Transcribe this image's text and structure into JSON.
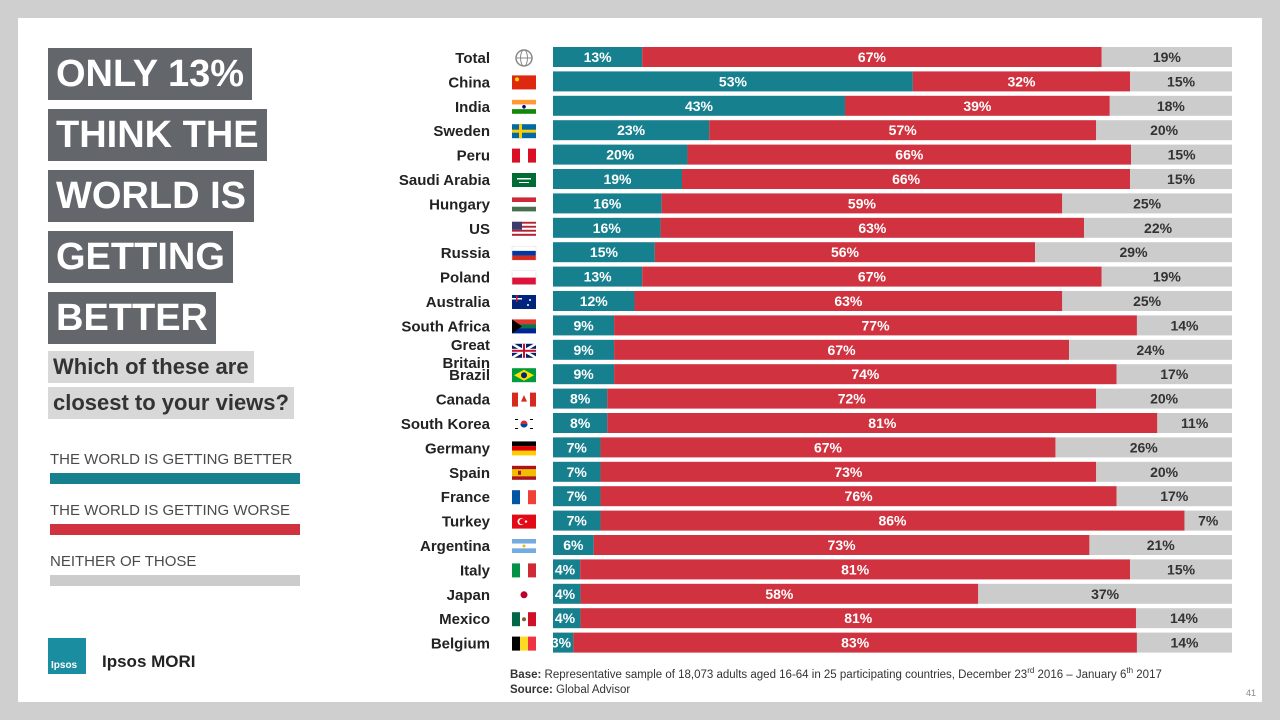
{
  "headline": [
    "ONLY 13%",
    "THINK THE",
    "WORLD IS",
    "GETTING",
    "BETTER"
  ],
  "question": [
    "Which of these are",
    "closest to your views?"
  ],
  "legend": [
    {
      "label": "THE WORLD IS GETTING BETTER",
      "color": "#17808f"
    },
    {
      "label": "THE WORLD IS GETTING WORSE",
      "color": "#d0323f"
    },
    {
      "label": "NEITHER OF THOSE",
      "color": "#cccccc"
    }
  ],
  "logo": {
    "badge": "Ipsos",
    "name": "Ipsos MORI"
  },
  "footer": {
    "base_label": "Base:",
    "base_text": "Representative sample of 18,073 adults aged 16-64 in 25 participating countries, December 23",
    "base_sup1": "rd",
    "base_mid": " 2016 – January 6",
    "base_sup2": "th",
    "base_end": " 2017",
    "source_label": "Source:",
    "source_text": "Global Advisor"
  },
  "page_number": "41",
  "chart_data": {
    "type": "bar",
    "orientation": "horizontal",
    "stacked": true,
    "categories": [
      "Total",
      "China",
      "India",
      "Sweden",
      "Peru",
      "Saudi Arabia",
      "Hungary",
      "US",
      "Russia",
      "Poland",
      "Australia",
      "South Africa",
      "Great Britain",
      "Brazil",
      "Canada",
      "South Korea",
      "Germany",
      "Spain",
      "France",
      "Turkey",
      "Argentina",
      "Italy",
      "Japan",
      "Mexico",
      "Belgium"
    ],
    "series": [
      {
        "name": "THE WORLD IS GETTING BETTER",
        "color": "#17808f",
        "label_color": "#ffffff",
        "values": [
          13,
          53,
          43,
          23,
          20,
          19,
          16,
          16,
          15,
          13,
          12,
          9,
          9,
          9,
          8,
          8,
          7,
          7,
          7,
          7,
          6,
          4,
          4,
          4,
          3
        ]
      },
      {
        "name": "THE WORLD IS GETTING WORSE",
        "color": "#d0323f",
        "label_color": "#ffffff",
        "values": [
          67,
          32,
          39,
          57,
          66,
          66,
          59,
          63,
          56,
          67,
          63,
          77,
          67,
          74,
          72,
          81,
          67,
          73,
          76,
          86,
          73,
          81,
          58,
          81,
          83
        ]
      },
      {
        "name": "NEITHER OF THOSE",
        "color": "#cccccc",
        "label_color": "#333333",
        "values": [
          19,
          15,
          18,
          20,
          15,
          15,
          25,
          22,
          29,
          19,
          25,
          14,
          24,
          17,
          20,
          11,
          26,
          20,
          17,
          7,
          21,
          15,
          37,
          14,
          14
        ]
      }
    ],
    "value_suffix": "%",
    "row_icons": [
      "globe-icon",
      "flag-china-icon",
      "flag-india-icon",
      "flag-sweden-icon",
      "flag-peru-icon",
      "flag-saudi-arabia-icon",
      "flag-hungary-icon",
      "flag-us-icon",
      "flag-russia-icon",
      "flag-poland-icon",
      "flag-australia-icon",
      "flag-south-africa-icon",
      "flag-great-britain-icon",
      "flag-brazil-icon",
      "flag-canada-icon",
      "flag-south-korea-icon",
      "flag-germany-icon",
      "flag-spain-icon",
      "flag-france-icon",
      "flag-turkey-icon",
      "flag-argentina-icon",
      "flag-italy-icon",
      "flag-japan-icon",
      "flag-mexico-icon",
      "flag-belgium-icon"
    ]
  }
}
